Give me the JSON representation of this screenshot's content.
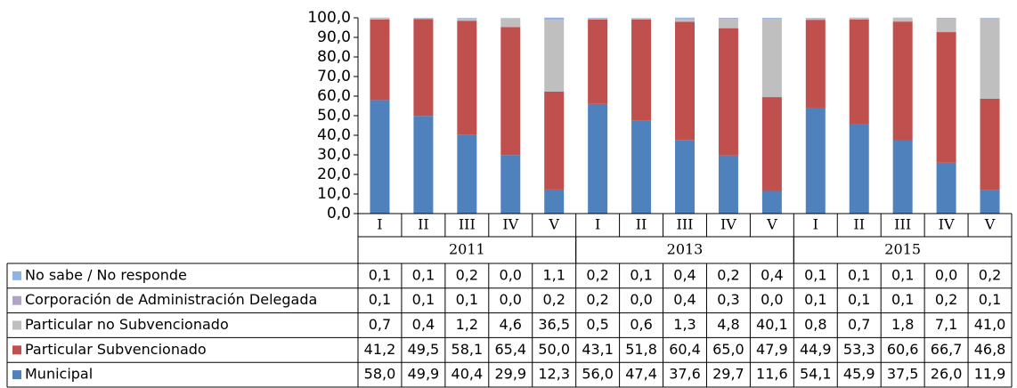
{
  "chart_data": {
    "type": "stacked_bar",
    "categories": [
      "I",
      "II",
      "III",
      "IV",
      "V",
      "I",
      "II",
      "III",
      "IV",
      "V",
      "I",
      "II",
      "III",
      "IV",
      "V"
    ],
    "groups": [
      "2011",
      "2013",
      "2015"
    ],
    "ylim": [
      0,
      100
    ],
    "yticks": [
      {
        "value": 0,
        "label": "0,0"
      },
      {
        "value": 10,
        "label": "10,0"
      },
      {
        "value": 20,
        "label": "20,0"
      },
      {
        "value": 30,
        "label": "30,0"
      },
      {
        "value": 40,
        "label": "40,0"
      },
      {
        "value": 50,
        "label": "50,0"
      },
      {
        "value": 60,
        "label": "60,0"
      },
      {
        "value": 70,
        "label": "70,0"
      },
      {
        "value": 80,
        "label": "80,0"
      },
      {
        "value": 90,
        "label": "90,0"
      },
      {
        "value": 100,
        "label": "100,0"
      }
    ],
    "grid": false,
    "series": [
      {
        "name": "No sabe / No responde",
        "color": "#8fb4e3",
        "values": [
          0.1,
          0.1,
          0.2,
          0.0,
          1.1,
          0.2,
          0.1,
          0.4,
          0.2,
          0.4,
          0.1,
          0.1,
          0.1,
          0.0,
          0.2
        ],
        "value_labels": [
          "0,1",
          "0,1",
          "0,2",
          "0,0",
          "1,1",
          "0,2",
          "0,1",
          "0,4",
          "0,2",
          "0,4",
          "0,1",
          "0,1",
          "0,1",
          "0,0",
          "0,2"
        ]
      },
      {
        "name": "Corporación de Administración Delegada",
        "color": "#b3a2c7",
        "values": [
          0.1,
          0.1,
          0.1,
          0.0,
          0.2,
          0.2,
          0.0,
          0.4,
          0.3,
          0.0,
          0.1,
          0.1,
          0.1,
          0.2,
          0.1
        ],
        "value_labels": [
          "0,1",
          "0,1",
          "0,1",
          "0,0",
          "0,2",
          "0,2",
          "0,0",
          "0,4",
          "0,3",
          "0,0",
          "0,1",
          "0,1",
          "0,1",
          "0,2",
          "0,1"
        ]
      },
      {
        "name": "Particular no Subvencionado",
        "color": "#bfbfbf",
        "values": [
          0.7,
          0.4,
          1.2,
          4.6,
          36.5,
          0.5,
          0.6,
          1.3,
          4.8,
          40.1,
          0.8,
          0.7,
          1.8,
          7.1,
          41.0
        ],
        "value_labels": [
          "0,7",
          "0,4",
          "1,2",
          "4,6",
          "36,5",
          "0,5",
          "0,6",
          "1,3",
          "4,8",
          "40,1",
          "0,8",
          "0,7",
          "1,8",
          "7,1",
          "41,0"
        ]
      },
      {
        "name": "Particular Subvencionado",
        "color": "#c0504d",
        "values": [
          41.2,
          49.5,
          58.1,
          65.4,
          50.0,
          43.1,
          51.8,
          60.4,
          65.0,
          47.9,
          44.9,
          53.3,
          60.6,
          66.7,
          46.8
        ],
        "value_labels": [
          "41,2",
          "49,5",
          "58,1",
          "65,4",
          "50,0",
          "43,1",
          "51,8",
          "60,4",
          "65,0",
          "47,9",
          "44,9",
          "53,3",
          "60,6",
          "66,7",
          "46,8"
        ]
      },
      {
        "name": "Municipal",
        "color": "#4f81bd",
        "values": [
          58.0,
          49.9,
          40.4,
          29.9,
          12.3,
          56.0,
          47.4,
          37.6,
          29.7,
          11.6,
          54.1,
          45.9,
          37.5,
          26.0,
          11.9
        ],
        "value_labels": [
          "58,0",
          "49,9",
          "40,4",
          "29,9",
          "12,3",
          "56,0",
          "47,4",
          "37,6",
          "29,7",
          "11,6",
          "54,1",
          "45,9",
          "37,5",
          "26,0",
          "11,9"
        ]
      }
    ]
  }
}
